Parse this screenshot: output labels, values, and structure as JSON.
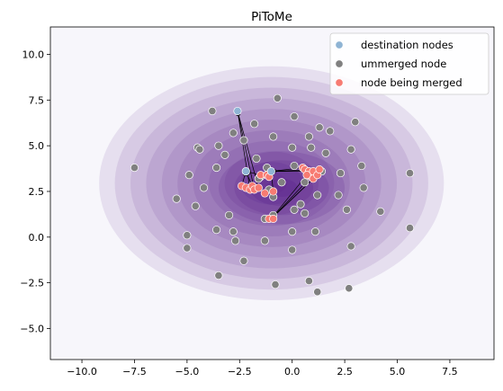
{
  "chart_data": {
    "type": "scatter",
    "title": "PiToMe",
    "xlabel": "",
    "ylabel": "",
    "xlim": [
      -11.5,
      9.6
    ],
    "ylim": [
      -6.7,
      11.5
    ],
    "xticks": [
      "−10.0",
      "−7.5",
      "−5.0",
      "−2.5",
      "0.0",
      "2.5",
      "5.0",
      "7.5"
    ],
    "xtick_values": [
      -10,
      -7.5,
      -5,
      -2.5,
      0,
      2.5,
      5,
      7.5
    ],
    "yticks": [
      "−5.0",
      "−2.5",
      "0.0",
      "2.5",
      "5.0",
      "7.5",
      "10.0"
    ],
    "ytick_values": [
      -5,
      -2.5,
      0,
      2.5,
      5,
      7.5,
      10
    ],
    "grid": false,
    "legend_position": "top-right",
    "background": "#f7f6fb",
    "density_color": "#3f007d",
    "series": [
      {
        "name": "destination nodes",
        "color": "#8fb4d4",
        "points": [
          [
            -2.6,
            6.9
          ],
          [
            -2.2,
            3.6
          ],
          [
            -1.0,
            3.6
          ]
        ]
      },
      {
        "name": "ummerged node",
        "color": "#808080",
        "points": [
          [
            -7.5,
            3.8
          ],
          [
            -5.5,
            2.1
          ],
          [
            -5.0,
            0.1
          ],
          [
            -5.0,
            -0.6
          ],
          [
            -4.9,
            3.4
          ],
          [
            -4.5,
            4.9
          ],
          [
            -4.4,
            4.8
          ],
          [
            -4.2,
            2.7
          ],
          [
            -4.6,
            1.7
          ],
          [
            -3.8,
            6.9
          ],
          [
            -3.6,
            3.8
          ],
          [
            -3.5,
            -2.1
          ],
          [
            -3.6,
            0.4
          ],
          [
            -3.5,
            5.0
          ],
          [
            -3.2,
            4.5
          ],
          [
            -3.0,
            1.2
          ],
          [
            -2.8,
            5.7
          ],
          [
            -2.7,
            -0.2
          ],
          [
            -2.8,
            0.3
          ],
          [
            -2.3,
            -1.3
          ],
          [
            -2.3,
            5.3
          ],
          [
            -1.8,
            6.2
          ],
          [
            -1.7,
            4.3
          ],
          [
            -1.5,
            3.3
          ],
          [
            -1.3,
            1.0
          ],
          [
            -1.3,
            -0.2
          ],
          [
            -1.2,
            3.8
          ],
          [
            -1.1,
            2.6
          ],
          [
            -0.9,
            2.2
          ],
          [
            -0.9,
            5.5
          ],
          [
            -0.9,
            1.2
          ],
          [
            -0.7,
            7.6
          ],
          [
            -0.8,
            -2.6
          ],
          [
            -0.5,
            3.0
          ],
          [
            0.1,
            6.6
          ],
          [
            0.1,
            1.5
          ],
          [
            0.0,
            4.9
          ],
          [
            0.0,
            -0.7
          ],
          [
            0.1,
            3.9
          ],
          [
            0.0,
            0.3
          ],
          [
            0.4,
            1.8
          ],
          [
            0.6,
            3.0
          ],
          [
            0.6,
            1.3
          ],
          [
            0.8,
            5.5
          ],
          [
            0.8,
            -2.4
          ],
          [
            0.9,
            4.9
          ],
          [
            1.1,
            0.3
          ],
          [
            1.2,
            -3.0
          ],
          [
            1.2,
            2.3
          ],
          [
            1.3,
            6.0
          ],
          [
            1.4,
            3.6
          ],
          [
            1.6,
            4.6
          ],
          [
            2.2,
            2.3
          ],
          [
            2.3,
            3.5
          ],
          [
            2.6,
            1.5
          ],
          [
            2.7,
            -2.8
          ],
          [
            2.8,
            4.8
          ],
          [
            2.8,
            -0.5
          ],
          [
            3.0,
            6.3
          ],
          [
            3.3,
            3.9
          ],
          [
            3.4,
            2.7
          ],
          [
            4.2,
            1.4
          ],
          [
            5.6,
            3.5
          ],
          [
            5.6,
            0.5
          ],
          [
            1.8,
            5.8
          ],
          [
            -1.6,
            3.2
          ]
        ]
      },
      {
        "name": "node being merged",
        "color": "#f77b72",
        "points": [
          [
            -2.4,
            2.8
          ],
          [
            -2.2,
            2.7
          ],
          [
            -2.0,
            2.6
          ],
          [
            -1.9,
            2.8
          ],
          [
            -1.8,
            2.6
          ],
          [
            -1.6,
            2.7
          ],
          [
            -1.5,
            3.4
          ],
          [
            -1.3,
            2.4
          ],
          [
            -1.2,
            3.4
          ],
          [
            -1.1,
            3.3
          ],
          [
            -1.1,
            1.0
          ],
          [
            -0.9,
            1.0
          ],
          [
            -0.9,
            2.5
          ],
          [
            0.5,
            3.8
          ],
          [
            0.6,
            3.7
          ],
          [
            0.8,
            3.6
          ],
          [
            0.9,
            3.3
          ],
          [
            1.0,
            3.2
          ],
          [
            1.0,
            3.6
          ],
          [
            1.2,
            3.4
          ],
          [
            1.3,
            3.7
          ],
          [
            0.7,
            3.4
          ]
        ]
      }
    ],
    "arrows": [
      [
        -1.8,
        2.6,
        -2.6,
        6.9
      ],
      [
        -2.0,
        2.6,
        -2.6,
        6.9
      ],
      [
        -1.6,
        2.7,
        -2.6,
        6.9
      ],
      [
        -2.4,
        2.8,
        -2.2,
        3.6
      ],
      [
        -1.9,
        2.8,
        -2.2,
        3.6
      ],
      [
        -1.5,
        3.4,
        -2.2,
        3.6
      ],
      [
        -1.2,
        3.4,
        -1.0,
        3.6
      ],
      [
        -1.1,
        3.3,
        -1.0,
        3.6
      ],
      [
        -0.9,
        2.5,
        -1.0,
        3.6
      ],
      [
        0.5,
        3.8,
        -1.0,
        3.6
      ],
      [
        0.8,
        3.6,
        -1.0,
        3.6
      ],
      [
        1.3,
        3.7,
        -1.0,
        3.6
      ],
      [
        1.0,
        3.2,
        -1.0,
        1.0
      ],
      [
        1.2,
        3.4,
        -1.0,
        1.0
      ],
      [
        0.7,
        3.4,
        -1.0,
        1.0
      ],
      [
        0.9,
        3.3,
        -1.0,
        1.0
      ]
    ]
  }
}
